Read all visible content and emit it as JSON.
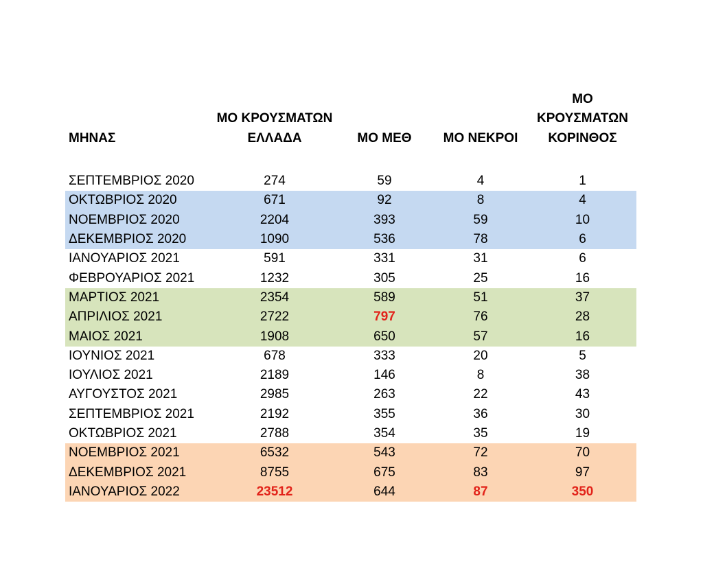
{
  "colors": {
    "background": "#ffffff",
    "text": "#000000",
    "red_accent": "#e2231a",
    "highlight_blue": "#c5d9f1",
    "highlight_green": "#d7e4bc",
    "highlight_orange": "#fcd5b4"
  },
  "table": {
    "columns": [
      {
        "key": "month",
        "label": "ΜΗΝΑΣ",
        "align": "left"
      },
      {
        "key": "cases_greece",
        "label": "ΜΟ ΚΡΟΥΣΜΑΤΩΝ\nΕΛΛΑΔΑ",
        "align": "center"
      },
      {
        "key": "icu",
        "label": "ΜΟ ΜΕΘ",
        "align": "center"
      },
      {
        "key": "deaths",
        "label": "ΜΟ ΝΕΚΡΟΙ",
        "align": "center"
      },
      {
        "key": "cases_korinthos",
        "label": "ΜΟ\nΚΡΟΥΣΜΑΤΩΝ\nΚΟΡΙΝΘΟΣ",
        "align": "center"
      }
    ],
    "rows": [
      {
        "month": "ΣΕΠΤΕΜΒΡΙΟΣ 2020",
        "cases_greece": "274",
        "icu": "59",
        "deaths": "4",
        "cases_korinthos": "1",
        "highlight": "none",
        "red_cells": []
      },
      {
        "month": "ΟΚΤΩΒΡΙΟΣ 2020",
        "cases_greece": "671",
        "icu": "92",
        "deaths": "8",
        "cases_korinthos": "4",
        "highlight": "blue",
        "red_cells": []
      },
      {
        "month": "ΝΟΕΜΒΡΙΟΣ 2020",
        "cases_greece": "2204",
        "icu": "393",
        "deaths": "59",
        "cases_korinthos": "10",
        "highlight": "blue",
        "red_cells": []
      },
      {
        "month": "ΔΕΚΕΜΒΡΙΟΣ 2020",
        "cases_greece": "1090",
        "icu": "536",
        "deaths": "78",
        "cases_korinthos": "6",
        "highlight": "blue",
        "red_cells": []
      },
      {
        "month": "ΙΑΝΟΥΑΡΙΟΣ 2021",
        "cases_greece": "591",
        "icu": "331",
        "deaths": "31",
        "cases_korinthos": "6",
        "highlight": "none",
        "red_cells": []
      },
      {
        "month": "ΦΕΒΡΟΥΑΡΙΟΣ 2021",
        "cases_greece": "1232",
        "icu": "305",
        "deaths": "25",
        "cases_korinthos": "16",
        "highlight": "none",
        "red_cells": []
      },
      {
        "month": "ΜΑΡΤΙΟΣ 2021",
        "cases_greece": "2354",
        "icu": "589",
        "deaths": "51",
        "cases_korinthos": "37",
        "highlight": "green",
        "red_cells": []
      },
      {
        "month": "ΑΠΡΙΛΙΟΣ 2021",
        "cases_greece": "2722",
        "icu": "797",
        "deaths": "76",
        "cases_korinthos": "28",
        "highlight": "green",
        "red_cells": [
          "icu"
        ]
      },
      {
        "month": "ΜΑΙΟΣ 2021",
        "cases_greece": "1908",
        "icu": "650",
        "deaths": "57",
        "cases_korinthos": "16",
        "highlight": "green",
        "red_cells": []
      },
      {
        "month": "ΙΟΥΝΙΟΣ 2021",
        "cases_greece": "678",
        "icu": "333",
        "deaths": "20",
        "cases_korinthos": "5",
        "highlight": "none",
        "red_cells": []
      },
      {
        "month": "ΙΟΥΛΙΟΣ 2021",
        "cases_greece": "2189",
        "icu": "146",
        "deaths": "8",
        "cases_korinthos": "38",
        "highlight": "none",
        "red_cells": []
      },
      {
        "month": "ΑΥΓΟΥΣΤΟΣ 2021",
        "cases_greece": "2985",
        "icu": "263",
        "deaths": "22",
        "cases_korinthos": "43",
        "highlight": "none",
        "red_cells": []
      },
      {
        "month": "ΣΕΠΤΕΜΒΡΙΟΣ 2021",
        "cases_greece": "2192",
        "icu": "355",
        "deaths": "36",
        "cases_korinthos": "30",
        "highlight": "none",
        "red_cells": []
      },
      {
        "month": "ΟΚΤΩΒΡΙΟΣ 2021",
        "cases_greece": "2788",
        "icu": "354",
        "deaths": "35",
        "cases_korinthos": "19",
        "highlight": "none",
        "red_cells": []
      },
      {
        "month": "ΝΟΕΜΒΡΙΟΣ 2021",
        "cases_greece": "6532",
        "icu": "543",
        "deaths": "72",
        "cases_korinthos": "70",
        "highlight": "orange",
        "red_cells": []
      },
      {
        "month": "ΔΕΚΕΜΒΡΙΟΣ 2021",
        "cases_greece": "8755",
        "icu": "675",
        "deaths": "83",
        "cases_korinthos": "97",
        "highlight": "orange",
        "red_cells": []
      },
      {
        "month": "ΙΑΝΟΥΑΡΙΟΣ 2022",
        "cases_greece": "23512",
        "icu": "644",
        "deaths": "87",
        "cases_korinthos": "350",
        "highlight": "orange",
        "red_cells": [
          "cases_greece",
          "deaths",
          "cases_korinthos"
        ]
      }
    ]
  },
  "chart_data": {
    "type": "table",
    "title": "",
    "columns": [
      "ΜΗΝΑΣ",
      "ΜΟ ΚΡΟΥΣΜΑΤΩΝ ΕΛΛΑΔΑ",
      "ΜΟ ΜΕΘ",
      "ΜΟ ΝΕΚΡΟΙ",
      "ΜΟ ΚΡΟΥΣΜΑΤΩΝ ΚΟΡΙΝΘΟΣ"
    ],
    "categories": [
      "ΣΕΠΤΕΜΒΡΙΟΣ 2020",
      "ΟΚΤΩΒΡΙΟΣ 2020",
      "ΝΟΕΜΒΡΙΟΣ 2020",
      "ΔΕΚΕΜΒΡΙΟΣ 2020",
      "ΙΑΝΟΥΑΡΙΟΣ 2021",
      "ΦΕΒΡΟΥΑΡΙΟΣ 2021",
      "ΜΑΡΤΙΟΣ 2021",
      "ΑΠΡΙΛΙΟΣ 2021",
      "ΜΑΙΟΣ 2021",
      "ΙΟΥΝΙΟΣ 2021",
      "ΙΟΥΛΙΟΣ 2021",
      "ΑΥΓΟΥΣΤΟΣ 2021",
      "ΣΕΠΤΕΜΒΡΙΟΣ 2021",
      "ΟΚΤΩΒΡΙΟΣ 2021",
      "ΝΟΕΜΒΡΙΟΣ 2021",
      "ΔΕΚΕΜΒΡΙΟΣ 2021",
      "ΙΑΝΟΥΑΡΙΟΣ 2022"
    ],
    "series": [
      {
        "name": "ΜΟ ΚΡΟΥΣΜΑΤΩΝ ΕΛΛΑΔΑ",
        "values": [
          274,
          671,
          2204,
          1090,
          591,
          1232,
          2354,
          2722,
          1908,
          678,
          2189,
          2985,
          2192,
          2788,
          6532,
          8755,
          23512
        ]
      },
      {
        "name": "ΜΟ ΜΕΘ",
        "values": [
          59,
          92,
          393,
          536,
          331,
          305,
          589,
          797,
          650,
          333,
          146,
          263,
          355,
          354,
          543,
          675,
          644
        ]
      },
      {
        "name": "ΜΟ ΝΕΚΡΟΙ",
        "values": [
          4,
          8,
          59,
          78,
          31,
          25,
          51,
          76,
          57,
          20,
          8,
          22,
          36,
          35,
          72,
          83,
          87
        ]
      },
      {
        "name": "ΜΟ ΚΡΟΥΣΜΑΤΩΝ ΚΟΡΙΝΘΟΣ",
        "values": [
          1,
          4,
          10,
          6,
          6,
          16,
          37,
          28,
          16,
          5,
          38,
          43,
          30,
          19,
          70,
          97,
          350
        ]
      }
    ],
    "highlighted_row_groups": [
      {
        "color": "#c5d9f1",
        "rows": [
          "ΟΚΤΩΒΡΙΟΣ 2020",
          "ΝΟΕΜΒΡΙΟΣ 2020",
          "ΔΕΚΕΜΒΡΙΟΣ 2020"
        ]
      },
      {
        "color": "#d7e4bc",
        "rows": [
          "ΜΑΡΤΙΟΣ 2021",
          "ΑΠΡΙΛΙΟΣ 2021",
          "ΜΑΙΟΣ 2021"
        ]
      },
      {
        "color": "#fcd5b4",
        "rows": [
          "ΝΟΕΜΒΡΙΟΣ 2021",
          "ΔΕΚΕΜΒΡΙΟΣ 2021",
          "ΙΑΝΟΥΑΡΙΟΣ 2022"
        ]
      }
    ],
    "red_highlighted_values": [
      {
        "row": "ΑΠΡΙΛΙΟΣ 2021",
        "column": "ΜΟ ΜΕΘ",
        "value": 797
      },
      {
        "row": "ΙΑΝΟΥΑΡΙΟΣ 2022",
        "column": "ΜΟ ΚΡΟΥΣΜΑΤΩΝ ΕΛΛΑΔΑ",
        "value": 23512
      },
      {
        "row": "ΙΑΝΟΥΑΡΙΟΣ 2022",
        "column": "ΜΟ ΝΕΚΡΟΙ",
        "value": 87
      },
      {
        "row": "ΙΑΝΟΥΑΡΙΟΣ 2022",
        "column": "ΜΟ ΚΡΟΥΣΜΑΤΩΝ ΚΟΡΙΝΘΟΣ",
        "value": 350
      }
    ],
    "grid": false,
    "legend_position": "none"
  }
}
